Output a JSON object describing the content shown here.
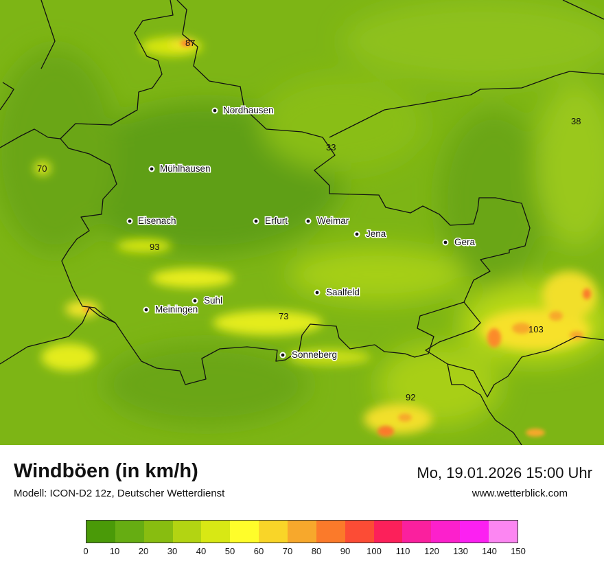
{
  "header": {
    "title": "Windböen (in km/h)",
    "model": "Modell: ICON-D2 12z, Deutscher Wetterdienst",
    "datetime": "Mo, 19.01.2026 15:00 Uhr",
    "website": "www.wetterblick.com"
  },
  "cities": [
    "Nordhausen",
    "Mühlhausen",
    "Eisenach",
    "Erfurt",
    "Weimar",
    "Jena",
    "Gera",
    "Saalfeld",
    "Suhl",
    "Meiningen",
    "Sonneberg"
  ],
  "values": [
    "87",
    "38",
    "33",
    "70",
    "93",
    "73",
    "103",
    "92"
  ],
  "legend": {
    "ticks": [
      "0",
      "10",
      "20",
      "30",
      "40",
      "50",
      "60",
      "70",
      "80",
      "90",
      "100",
      "110",
      "120",
      "130",
      "140",
      "150"
    ],
    "colors": [
      "#4a9a08",
      "#66ad12",
      "#88bd10",
      "#b3d412",
      "#d8e814",
      "#fffd2a",
      "#f9d528",
      "#f7a82c",
      "#fb7a2a",
      "#fc4c35",
      "#fc205a",
      "#fa209e",
      "#fc20cc",
      "#fc20f2",
      "#fc86f2"
    ]
  }
}
